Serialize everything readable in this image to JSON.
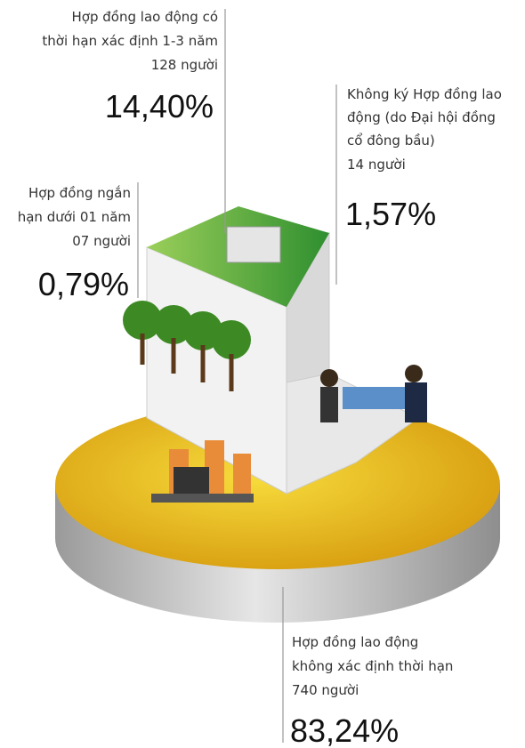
{
  "segments": [
    {
      "label_lines": [
        "Hợp đồng lao động có",
        "thời hạn xác định 1-3 năm"
      ],
      "count": "128 người",
      "percent": "14,40%"
    },
    {
      "label_lines": [
        "Không ký Hợp đồng lao",
        "động (do Đại hội đồng",
        "cổ đông bầu)"
      ],
      "count": "14 người",
      "percent": "1,57%"
    },
    {
      "label_lines": [
        "Hợp đồng ngắn",
        "hạn dưới 01 năm"
      ],
      "count": "07 người",
      "percent": "0,79%"
    },
    {
      "label_lines": [
        "Hợp đồng lao động",
        "không xác định thời hạn"
      ],
      "count": "740 người",
      "percent": "83,24%"
    }
  ]
}
